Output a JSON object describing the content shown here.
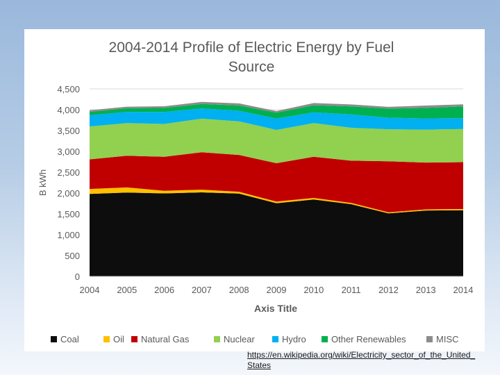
{
  "chart_data": {
    "type": "area",
    "stacked": true,
    "title_lines": [
      "2004-2014 Profile of Electric Energy by Fuel",
      "Source"
    ],
    "xlabel": "Axis Title",
    "ylabel": "B kWh",
    "x": [
      "2004",
      "2005",
      "2006",
      "2007",
      "2008",
      "2009",
      "2010",
      "2011",
      "2012",
      "2013",
      "2014"
    ],
    "ylim": [
      0,
      4500
    ],
    "yticks": [
      0,
      500,
      1000,
      1500,
      2000,
      2500,
      3000,
      3500,
      4000,
      4500
    ],
    "ytick_labels": [
      "0",
      "500",
      "1,000",
      "1,500",
      "2,000",
      "2,500",
      "3,000",
      "3,500",
      "4,000",
      "4,500"
    ],
    "gridlines": true,
    "legend_position": "bottom",
    "series": [
      {
        "name": "Coal",
        "color": "#0d0d0d",
        "values": [
          1978,
          2013,
          1991,
          2016,
          1986,
          1756,
          1847,
          1733,
          1514,
          1581,
          1586
        ]
      },
      {
        "name": "Oil",
        "color": "#ffc000",
        "values": [
          121,
          122,
          64,
          66,
          46,
          39,
          37,
          30,
          23,
          27,
          30
        ]
      },
      {
        "name": "Natural Gas",
        "color": "#c00000",
        "values": [
          710,
          761,
          816,
          897,
          883,
          921,
          988,
          1014,
          1226,
          1124,
          1126
        ]
      },
      {
        "name": "Nuclear",
        "color": "#92d050",
        "values": [
          789,
          782,
          787,
          806,
          806,
          799,
          807,
          790,
          769,
          789,
          797
        ]
      },
      {
        "name": "Hydro",
        "color": "#00b0f0",
        "values": [
          268,
          270,
          289,
          247,
          254,
          273,
          260,
          319,
          276,
          269,
          259
        ]
      },
      {
        "name": "Other Renewables",
        "color": "#00b050",
        "values": [
          83,
          87,
          97,
          105,
          126,
          144,
          167,
          194,
          218,
          253,
          280
        ]
      },
      {
        "name": "MISC",
        "color": "#8c8c8c",
        "values": [
          40,
          38,
          40,
          49,
          51,
          37,
          54,
          47,
          42,
          57,
          52
        ]
      }
    ]
  },
  "source_link": "https://en.wikipedia.org/wiki/Electricity_sector_of_the_United_States"
}
